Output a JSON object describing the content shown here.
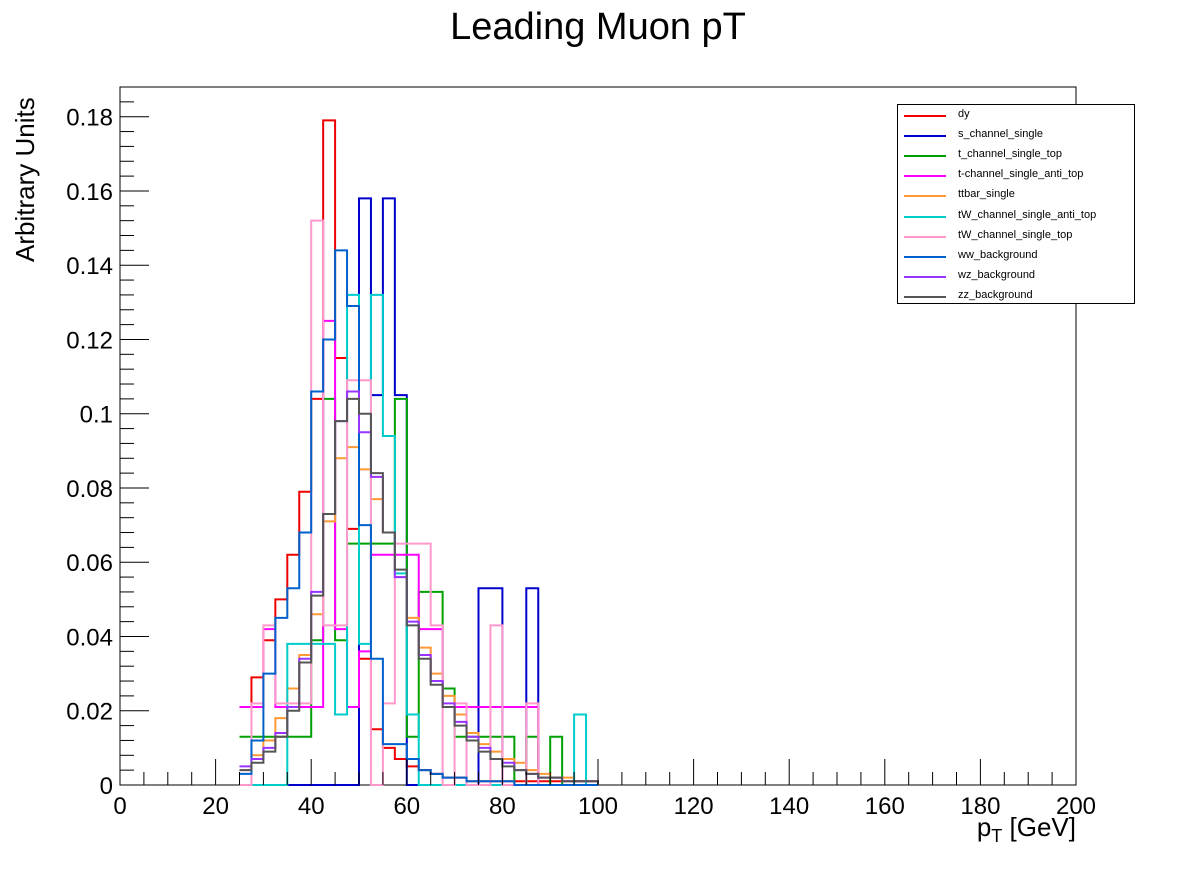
{
  "chart_data": {
    "type": "line",
    "title": "Leading Muon pT",
    "xlabel_main": "p",
    "xlabel_sub": "T",
    "xlabel_unit": "[GeV]",
    "ylabel": "Arbitrary Units",
    "xlim": [
      0,
      200
    ],
    "ylim": [
      0,
      0.188
    ],
    "xticks": [
      0,
      20,
      40,
      60,
      80,
      100,
      120,
      140,
      160,
      180,
      200
    ],
    "yticks": [
      0,
      0.02,
      0.04,
      0.06,
      0.08,
      0.1,
      0.12,
      0.14,
      0.16,
      0.18
    ],
    "ytick_labels": [
      "0",
      "0.02",
      "0.04",
      "0.06",
      "0.08",
      "0.1",
      "0.12",
      "0.14",
      "0.16",
      "0.18"
    ],
    "bin_edges_start": 25,
    "bin_width": 2.5,
    "grid": false,
    "legend_position": "top-right",
    "series": [
      {
        "name": "dy",
        "color": "#ee0000",
        "values": [
          0.021,
          0.029,
          0.039,
          0.05,
          0.062,
          0.079,
          0.104,
          0.179,
          0.115,
          0.069,
          0.034,
          0.015,
          0.01,
          0.007,
          0.005,
          0.004,
          0.003,
          0.002,
          0.002,
          0.001,
          0.001,
          0.001,
          0.001,
          0.001,
          0.001,
          0.001,
          0.001,
          0.001,
          0.001,
          0.001
        ]
      },
      {
        "name": "s_channel_single",
        "color": "#0000cc",
        "values": [
          0,
          0,
          0,
          0,
          0,
          0,
          0,
          0,
          0,
          0,
          0.158,
          0.105,
          0.158,
          0.105,
          0,
          0,
          0,
          0,
          0,
          0,
          0.053,
          0.053,
          0,
          0,
          0.053,
          0,
          0,
          0,
          0,
          0
        ]
      },
      {
        "name": "t_channel_single_top",
        "color": "#00a000",
        "values": [
          0.013,
          0.013,
          0.013,
          0.013,
          0.013,
          0.013,
          0.039,
          0.104,
          0.039,
          0.065,
          0.065,
          0.065,
          0.065,
          0.104,
          0.013,
          0.052,
          0.052,
          0.026,
          0.013,
          0.013,
          0.013,
          0.013,
          0.013,
          0,
          0.013,
          0,
          0.013,
          0,
          0,
          0
        ]
      },
      {
        "name": "t-channel_single_anti_top",
        "color": "#ff00ff",
        "values": [
          0.021,
          0.021,
          0.042,
          0.021,
          0.021,
          0.021,
          0.021,
          0.125,
          0.042,
          0.021,
          0.036,
          0.062,
          0.062,
          0.062,
          0.062,
          0.042,
          0.042,
          0.021,
          0.021,
          0.021,
          0.021,
          0.021,
          0.021,
          0.021,
          0.021,
          0,
          0,
          0,
          0,
          0
        ]
      },
      {
        "name": "ttbar_single",
        "color": "#ff9933",
        "values": [
          0.004,
          0.008,
          0.012,
          0.018,
          0.026,
          0.035,
          0.046,
          0.071,
          0.088,
          0.091,
          0.085,
          0.077,
          0.068,
          0.056,
          0.045,
          0.037,
          0.03,
          0.024,
          0.019,
          0.014,
          0.011,
          0.009,
          0.007,
          0.006,
          0.004,
          0.003,
          0.002,
          0.002,
          0.001,
          0.001
        ]
      },
      {
        "name": "tW_channel_single_anti_top",
        "color": "#00cccc",
        "values": [
          0,
          0,
          0,
          0,
          0.038,
          0.038,
          0.038,
          0.038,
          0.019,
          0.132,
          0.038,
          0.132,
          0.094,
          0.057,
          0.019,
          0,
          0,
          0,
          0,
          0,
          0,
          0,
          0,
          0,
          0,
          0,
          0,
          0,
          0.019,
          0
        ]
      },
      {
        "name": "tW_channel_single_top",
        "color": "#ff99cc",
        "values": [
          0,
          0.022,
          0.043,
          0.022,
          0.022,
          0.022,
          0.152,
          0.043,
          0.043,
          0.109,
          0.109,
          0,
          0.022,
          0.065,
          0.065,
          0.065,
          0.043,
          0,
          0.022,
          0,
          0,
          0.043,
          0,
          0,
          0.022,
          0,
          0,
          0,
          0,
          0
        ]
      },
      {
        "name": "ww_background",
        "color": "#0060cc",
        "values": [
          0.003,
          0.012,
          0.03,
          0.045,
          0.053,
          0.068,
          0.106,
          0.12,
          0.144,
          0.129,
          0.07,
          0.034,
          0.011,
          0.011,
          0.007,
          0.004,
          0.003,
          0.002,
          0.002,
          0.001,
          0.001,
          0.001,
          0.001,
          0,
          0,
          0,
          0,
          0,
          0,
          0
        ]
      },
      {
        "name": "wz_background",
        "color": "#9933ff",
        "values": [
          0.005,
          0.007,
          0.01,
          0.014,
          0.021,
          0.034,
          0.052,
          0.073,
          0.098,
          0.106,
          0.095,
          0.083,
          0.068,
          0.056,
          0.044,
          0.035,
          0.028,
          0.022,
          0.017,
          0.013,
          0.01,
          0.007,
          0.006,
          0.004,
          0.003,
          0.002,
          0.002,
          0.001,
          0.001,
          0.001
        ]
      },
      {
        "name": "zz_background",
        "color": "#555555",
        "values": [
          0.004,
          0.006,
          0.009,
          0.013,
          0.02,
          0.033,
          0.051,
          0.073,
          0.098,
          0.104,
          0.1,
          0.084,
          0.068,
          0.058,
          0.043,
          0.034,
          0.027,
          0.021,
          0.016,
          0.012,
          0.009,
          0.007,
          0.005,
          0.004,
          0.003,
          0.002,
          0.002,
          0.001,
          0.001,
          0.001
        ]
      }
    ]
  }
}
